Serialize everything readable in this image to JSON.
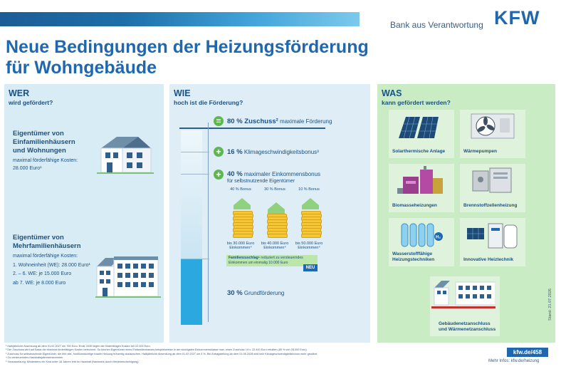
{
  "header": {
    "tagline": "Bank aus Verantwortung",
    "logo": "KFW",
    "title_line1": "Neue Bedingungen der Heizungsförderung",
    "title_line2": "für Wohngebäude"
  },
  "wer": {
    "heading": "WER",
    "subheading": "wird gefördert?",
    "group1": {
      "title_l1": "Eigentümer von",
      "title_l2": "Einfamilienhäusern",
      "title_l3": "und Wohnungen",
      "cost_l1": "maximal förderfähige Kosten:",
      "cost_l2": "28.000 Euro¹"
    },
    "group2": {
      "title_l1": "Eigentümer von",
      "title_l2": "Mehrfamilienhäusern",
      "cost_label": "maximal förderfähige Kosten:",
      "line1": "1. Wohneinheit (WE): 28.000 Euro¹",
      "line2": "2. – 6. WE: je 15.000 Euro",
      "line3": "ab 7. WE: je 8.000 Euro"
    }
  },
  "wie": {
    "heading": "WIE",
    "subheading": "hoch ist die Förderung?",
    "total_pct": "80 % Zuschuss²",
    "total_text": "maximale Förderung",
    "klima_pct": "16 %",
    "klima_text": "Klimageschwindigkeitsbonus³",
    "eink_pct": "40 %",
    "eink_text": "maximaler Einkommensbonus",
    "eink_text2": "für selbstnutzende Eigentümer",
    "bonus": [
      {
        "label": "40 % Bonus",
        "caption_l1": "bis 30.000 Euro",
        "caption_l2": "Einkommen⁴"
      },
      {
        "label": "30 % Bonus",
        "caption_l1": "bis 40.000 Euro",
        "caption_l2": "Einkommen⁴"
      },
      {
        "label": "10 % Bonus",
        "caption_l1": "bis 50.000 Euro",
        "caption_l2": "Einkommen⁴"
      }
    ],
    "fam_bold": "Familienzuschlag⁵",
    "fam_text": "reduziert zu versteuerndes Einkommen um einmalig 10.000 Euro",
    "neu": "NEU",
    "grund_pct": "30 %",
    "grund_text": "Grundförderung"
  },
  "was": {
    "heading": "WAS",
    "subheading": "kann gefördert werden?",
    "tiles": [
      {
        "label_l1": "Solarthermische Anlage",
        "label_l2": ""
      },
      {
        "label_l1": "Wärmepumpen",
        "label_l2": ""
      },
      {
        "label_l1": "Biomasseheizungen",
        "label_l2": ""
      },
      {
        "label_l1": "Brennstoffzellenheizung",
        "label_l2": ""
      },
      {
        "label_l1": "Wasserstofffähige",
        "label_l2": "Heizungstechniken"
      },
      {
        "label_l1": "Innovative Heiztechnik",
        "label_l2": ""
      },
      {
        "label_l1": "Gebäudenetzanschluss",
        "label_l2": "und Wärmenetzanschluss"
      }
    ]
  },
  "footer": {
    "notes": [
      "¹ Halbjährliche Absenkung ab dem 01.02.2027 um 750 Euro. Ende 2030 liegen die förderfähigen Kosten bei 22.000 Euro.",
      "² Der Zuschuss wird auf Basis der maximal förderfähigen Kosten berechnet. So können Eigentümer eines Einfamilienhauses beispielsweise in der niedrigsten Einkommensklasse max. einen Zuschuss i.H.v. 22.400 Euro erhalten (80 % von 28.000 Euro).",
      "³ Zuschuss für selbstnutzende Eigentümer, die ihre alte, funktionstüchtige fossile Heizung frühzeitig austauschen. Halbjährliche Absenkung ab dem 01.02.2027 um 4 %. Bei Antragstellung ab dem 01.08.2028 wird kein Klimageschwindigkeitsbonus mehr gewährt.",
      "⁴ Zu versteuerndes Haushaltsjahreseinkommen.",
      "⁵ Voraussetzung: Mindestens ein Kind unter 18 Jahren lebt im Haushalt (Nachweis durch Meldebescheinigung)."
    ],
    "badge": "kfw.de/458",
    "more": "Mehr Infos: kfw.de/heizung",
    "stand": "Stand: 21.07.2026"
  },
  "colors": {
    "brand": "#1f68b0",
    "green_accent": "#5fb84f",
    "coin": "#f2c833",
    "bar_fill": "#2ba8e0"
  }
}
